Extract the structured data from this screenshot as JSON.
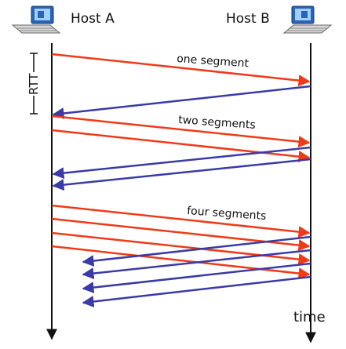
{
  "hosts": {
    "a": {
      "label": "Host A",
      "icon": "computer-icon"
    },
    "b": {
      "label": "Host B",
      "icon": "computer-icon"
    }
  },
  "rtt_label": "RTT",
  "time_label": "time",
  "segment_labels": [
    "one segment",
    "two segments",
    "four segments"
  ],
  "colors": {
    "data_arrow": "#f03a17",
    "ack_arrow": "#3a3aa8",
    "timeline": "#111111"
  },
  "rounds": [
    {
      "label": "one segment",
      "segments": 1,
      "acks": 1
    },
    {
      "label": "two segments",
      "segments": 2,
      "acks": 2
    },
    {
      "label": "four segments",
      "segments": 4,
      "acks": 4
    }
  ]
}
